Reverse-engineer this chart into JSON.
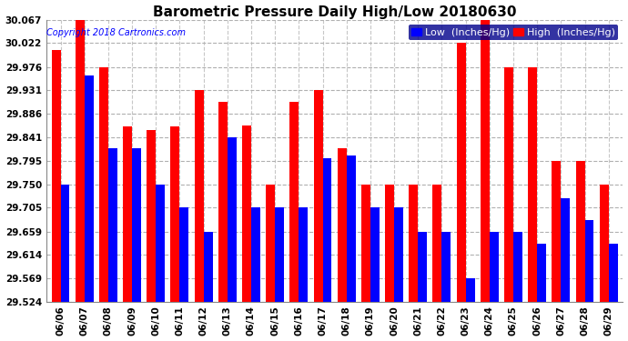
{
  "title": "Barometric Pressure Daily High/Low 20180630",
  "copyright": "Copyright 2018 Cartronics.com",
  "legend_low": "Low  (Inches/Hg)",
  "legend_high": "High  (Inches/Hg)",
  "dates": [
    "06/06",
    "06/07",
    "06/08",
    "06/09",
    "06/10",
    "06/11",
    "06/12",
    "06/13",
    "06/14",
    "06/15",
    "06/16",
    "06/17",
    "06/18",
    "06/19",
    "06/20",
    "06/21",
    "06/22",
    "06/23",
    "06/24",
    "06/25",
    "06/26",
    "06/27",
    "06/28",
    "06/29"
  ],
  "high": [
    30.008,
    30.067,
    29.976,
    29.862,
    29.855,
    29.862,
    29.931,
    29.908,
    29.863,
    29.75,
    29.908,
    29.931,
    29.82,
    29.75,
    29.75,
    29.75,
    29.75,
    30.022,
    30.067,
    29.976,
    29.976,
    29.795,
    29.795,
    29.75
  ],
  "low": [
    29.75,
    29.96,
    29.82,
    29.82,
    29.75,
    29.706,
    29.659,
    29.841,
    29.706,
    29.706,
    29.706,
    29.8,
    29.806,
    29.706,
    29.706,
    29.659,
    29.659,
    29.569,
    29.659,
    29.659,
    29.636,
    29.724,
    29.682,
    29.636
  ],
  "ylim_min": 29.524,
  "ylim_max": 30.067,
  "yticks": [
    29.524,
    29.569,
    29.614,
    29.659,
    29.705,
    29.75,
    29.795,
    29.841,
    29.886,
    29.931,
    29.976,
    30.022,
    30.067
  ],
  "bar_width": 0.38,
  "low_color": "#0000ff",
  "high_color": "#ff0000",
  "bg_color": "#ffffff",
  "grid_color": "#b0b0b0",
  "title_fontsize": 11,
  "tick_fontsize": 7.5,
  "legend_fontsize": 8
}
